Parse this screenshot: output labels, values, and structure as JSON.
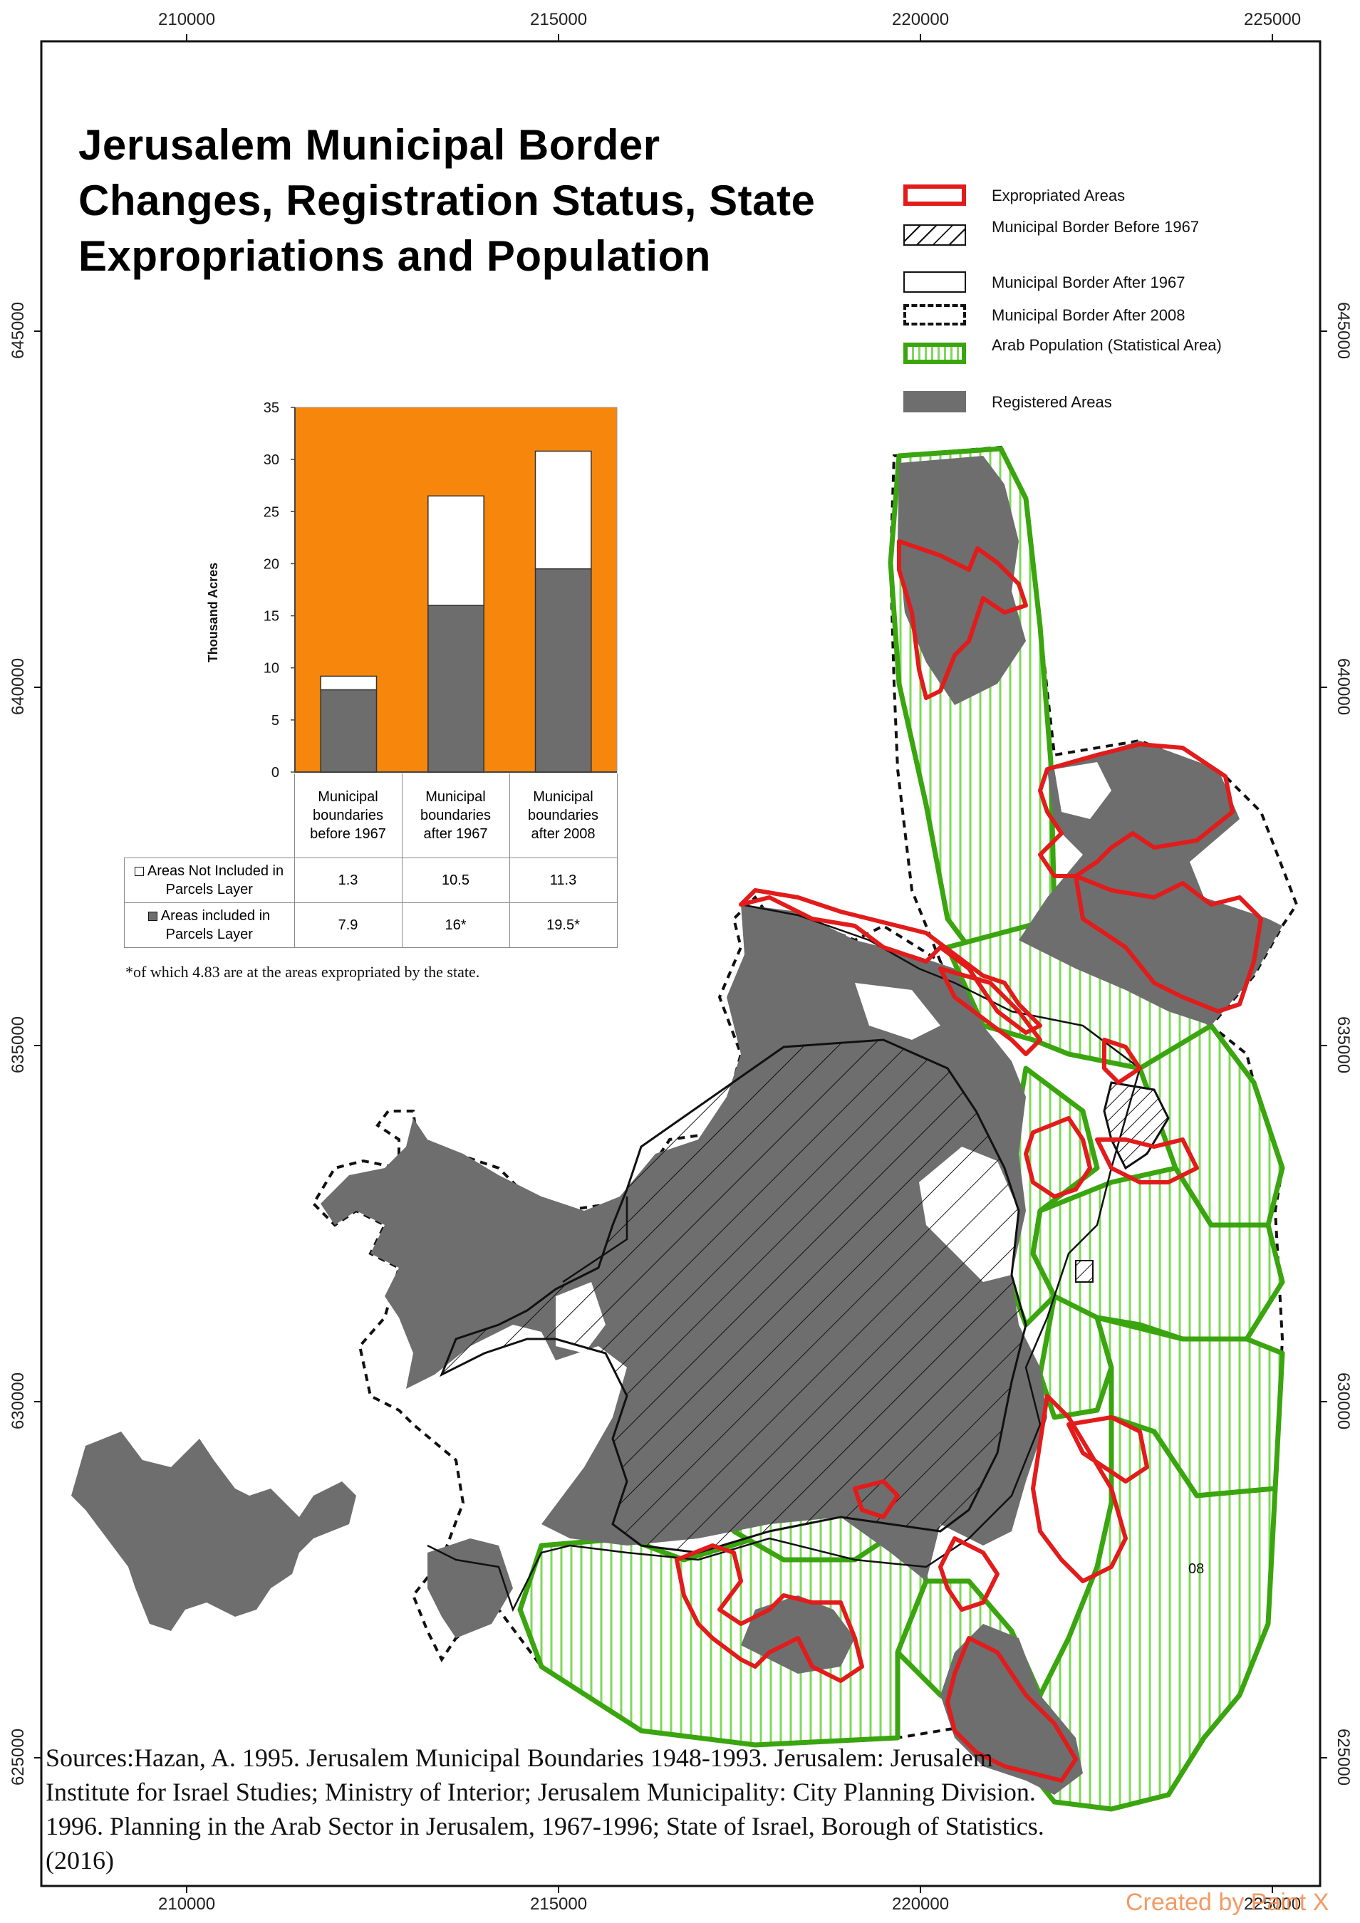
{
  "title": "Jerusalem Municipal Border Changes, Registration Status, State Expropriations and Population",
  "coordinates": {
    "top": [
      "210000",
      "215000",
      "220000",
      "225000"
    ],
    "bottom": [
      "210000",
      "215000",
      "220000",
      "225000"
    ],
    "left": [
      "645000",
      "640000",
      "635000",
      "630000",
      "625000"
    ],
    "right": [
      "645000",
      "640000",
      "635000",
      "630000",
      "625000"
    ]
  },
  "legend": [
    {
      "label": "Expropriated Areas",
      "icon": "red-outline-swatch"
    },
    {
      "label": "Municipal Border Before 1967",
      "icon": "hatched-black-swatch"
    },
    {
      "label": "Municipal Border  After 1967",
      "icon": "thin-black-outline-swatch"
    },
    {
      "label": "Municipal Border After 2008",
      "icon": "dashed-black-outline-swatch"
    },
    {
      "label": "Arab Population (Statistical Area)",
      "icon": "green-hatched-swatch"
    },
    {
      "label": "Registered Areas",
      "icon": "grey-fill-swatch"
    }
  ],
  "colors": {
    "expropriated": "#e21b1b",
    "arab_population": "#3aa50f",
    "arab_hatch": "#7fd85a",
    "registered": "#6e6e6e",
    "chart_background": "#f7870c",
    "not_included": "#ffffff",
    "included": "#6d6d6d"
  },
  "chart_data": {
    "type": "bar",
    "stacked": true,
    "categories": [
      "Municipal boundaries before 1967",
      "Municipal boundaries after 1967",
      "Municipal boundaries after 2008"
    ],
    "series": [
      {
        "name": "Areas included in Parcels Layer",
        "values": [
          7.9,
          16,
          19.5
        ]
      },
      {
        "name": "Areas Not Included in Parcels Layer",
        "values": [
          1.3,
          10.5,
          11.3
        ]
      }
    ],
    "ylabel": "Thousand Acres",
    "ylim": [
      0,
      35
    ],
    "yticks": [
      "0",
      "5",
      "10",
      "15",
      "20",
      "25",
      "30",
      "35"
    ],
    "grid": false
  },
  "table": {
    "rows": [
      {
        "label": "Areas Not Included in Parcels Layer",
        "cells": [
          "1.3",
          "10.5",
          "11.3"
        ]
      },
      {
        "label": "Areas included in Parcels Layer",
        "cells": [
          "7.9",
          "16*",
          "19.5*"
        ]
      }
    ]
  },
  "footnote": "*of which 4.83 are at the areas expropriated by the state.",
  "sources": "Sources:Hazan, A. 1995. Jerusalem Municipal Boundaries 1948-1993. Jerusalem: Jerusalem Institute for Israel Studies; Ministry of Interior; Jerusalem Municipality: City Planning Division. 1996. Planning in the Arab Sector in Jerusalem, 1967-1996; State of Israel, Borough of Statistics. (2016)",
  "map_label": "08",
  "watermark": "Created by Paint X"
}
